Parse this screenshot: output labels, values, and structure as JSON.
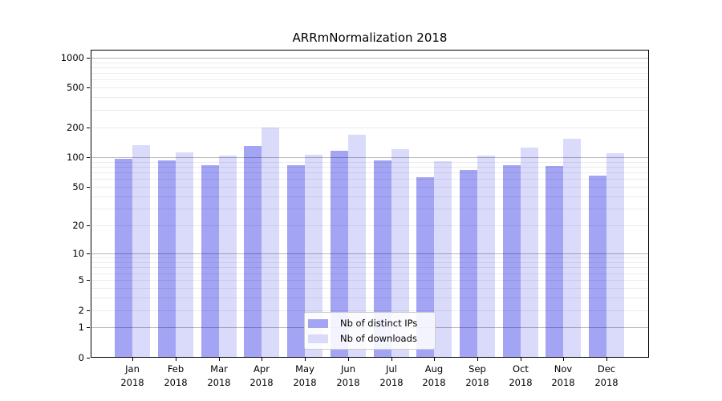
{
  "title": "ARRmNormalization 2018",
  "chart_data": {
    "type": "bar",
    "title": "ARRmNormalization 2018",
    "categories": [
      "Jan",
      "Feb",
      "Mar",
      "Apr",
      "May",
      "Jun",
      "Jul",
      "Aug",
      "Sep",
      "Oct",
      "Nov",
      "Dec"
    ],
    "year_label": "2018",
    "series": [
      {
        "name": "Nb of distinct IPs",
        "color": "#a3a4f4",
        "values": [
          97,
          93,
          83,
          129,
          83,
          117,
          93,
          63,
          74,
          83,
          81,
          65
        ]
      },
      {
        "name": "Nb of downloads",
        "color": "#dadbfb",
        "values": [
          133,
          112,
          104,
          200,
          106,
          168,
          120,
          92,
          103,
          125,
          155,
          110
        ]
      }
    ],
    "yscale": "log1p",
    "yticks": [
      0,
      1,
      2,
      5,
      10,
      20,
      50,
      100,
      200,
      500,
      1000
    ],
    "ylim": [
      0,
      1200
    ],
    "xlabel": "",
    "ylabel": "",
    "grid": true,
    "legend_position": "lower center",
    "background_color": "#ffffff",
    "axis_color": "#000000",
    "grid_major_color": "#b8b8b8",
    "grid_minor_color": "#ececec"
  }
}
